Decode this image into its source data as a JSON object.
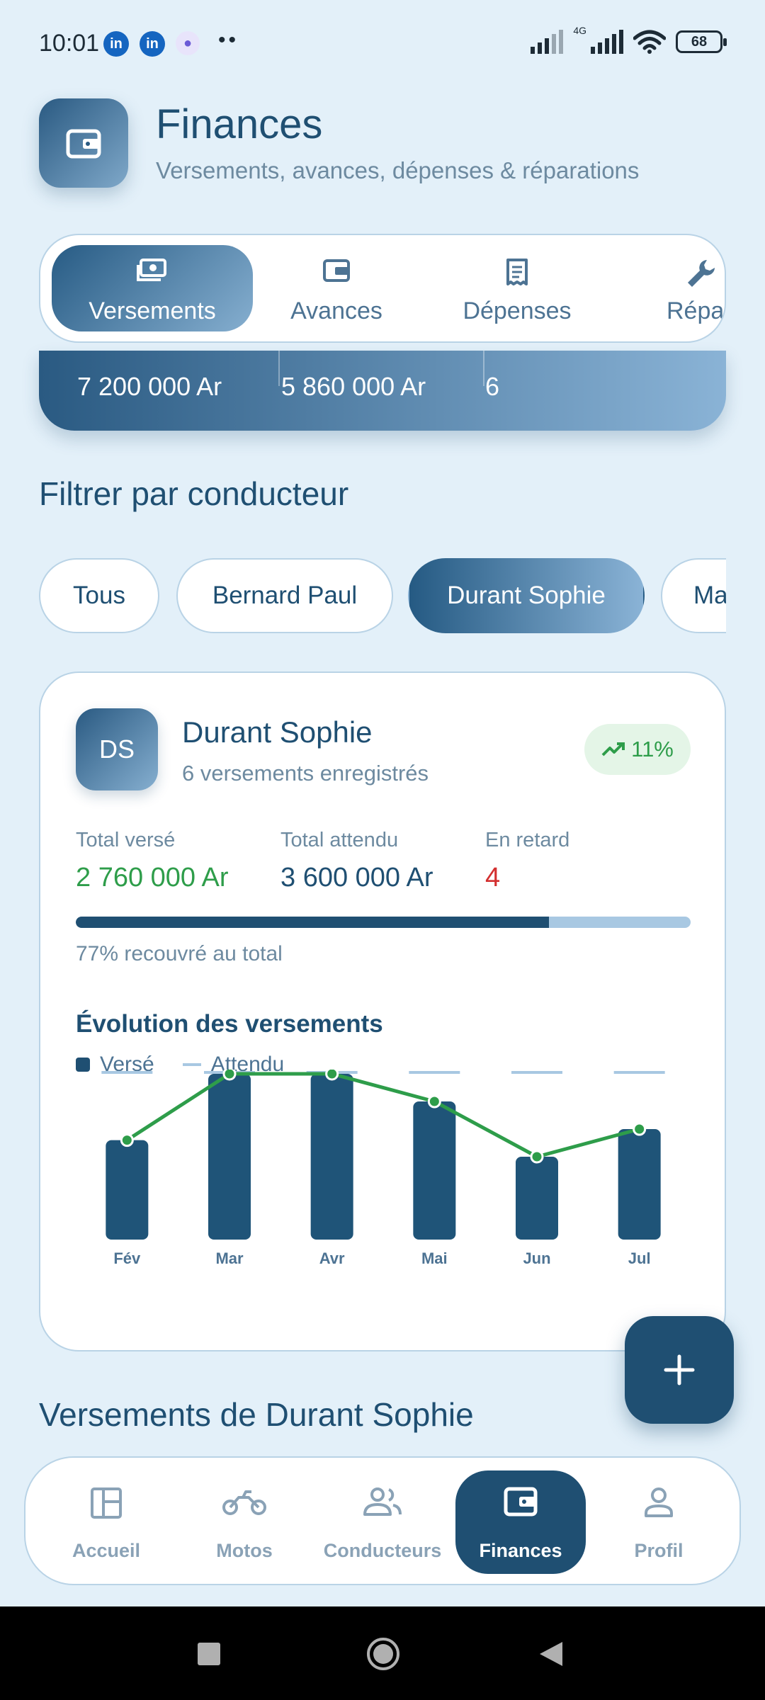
{
  "status_bar": {
    "time": "10:01",
    "network": "4G",
    "battery": "68",
    "icons": [
      "linkedin-icon",
      "linkedin-icon",
      "teams-icon",
      "more-dots",
      "signal-icon",
      "wifi-icon",
      "battery-icon"
    ]
  },
  "header": {
    "icon": "wallet-icon",
    "title": "Finances",
    "subtitle": "Versements, avances, dépenses & réparations"
  },
  "tabs": [
    {
      "label": "Versements",
      "icon": "cash-icon",
      "active": true
    },
    {
      "label": "Avances",
      "icon": "wallet-icon",
      "active": false
    },
    {
      "label": "Dépenses",
      "icon": "receipt-icon",
      "active": false
    },
    {
      "label": "Réparat",
      "icon": "wrench-icon",
      "active": false
    }
  ],
  "summary": {
    "values": [
      "7 200 000 Ar",
      "5 860 000 Ar",
      "6"
    ]
  },
  "filter": {
    "title": "Filtrer par conducteur",
    "chips": [
      {
        "label": "Tous",
        "active": false
      },
      {
        "label": "Bernard Paul",
        "active": false
      },
      {
        "label": "Durant Sophie",
        "active": true
      },
      {
        "label": "Ma",
        "active": false
      }
    ]
  },
  "driver_card": {
    "initials": "DS",
    "name": "Durant Sophie",
    "subtitle": "6 versements enregistrés",
    "trend": "11%",
    "stats": [
      {
        "label": "Total versé",
        "value": "2 760 000 Ar",
        "color": "#2e9d4a"
      },
      {
        "label": "Total attendu",
        "value": "3 600 000 Ar",
        "color": "#1f4f72"
      },
      {
        "label": "En retard",
        "value": "4",
        "color": "#d32f2f"
      }
    ],
    "progress": 0.77,
    "progress_text": "77% recouvré au total",
    "chart_title": "Évolution des versements",
    "legend": {
      "bar": "Versé",
      "line": "Attendu"
    }
  },
  "chart_data": {
    "type": "bar",
    "categories": [
      "Fév",
      "Mar",
      "Avr",
      "Mai",
      "Jun",
      "Jul"
    ],
    "series": [
      {
        "name": "Versé",
        "values": [
          360000,
          600000,
          600000,
          500000,
          300000,
          400000
        ],
        "color": "#1f5478"
      },
      {
        "name": "Attendu",
        "values": [
          600000,
          600000,
          600000,
          600000,
          600000,
          600000
        ],
        "color": "#a8c8e2"
      }
    ],
    "trend_color": "#2e9d4a",
    "ylim": [
      0,
      600000
    ],
    "grid": false
  },
  "section_payments_title": "Versements de Durant Sophie",
  "fab": {
    "icon": "plus-icon"
  },
  "bottom_nav": [
    {
      "label": "Accueil",
      "icon": "dashboard-icon",
      "active": false
    },
    {
      "label": "Motos",
      "icon": "motorcycle-icon",
      "active": false
    },
    {
      "label": "Conducteurs",
      "icon": "users-icon",
      "active": false
    },
    {
      "label": "Finances",
      "icon": "wallet-icon",
      "active": true
    },
    {
      "label": "Profil",
      "icon": "person-icon",
      "active": false
    }
  ],
  "system_nav": [
    "recents-button",
    "home-button",
    "back-button"
  ]
}
